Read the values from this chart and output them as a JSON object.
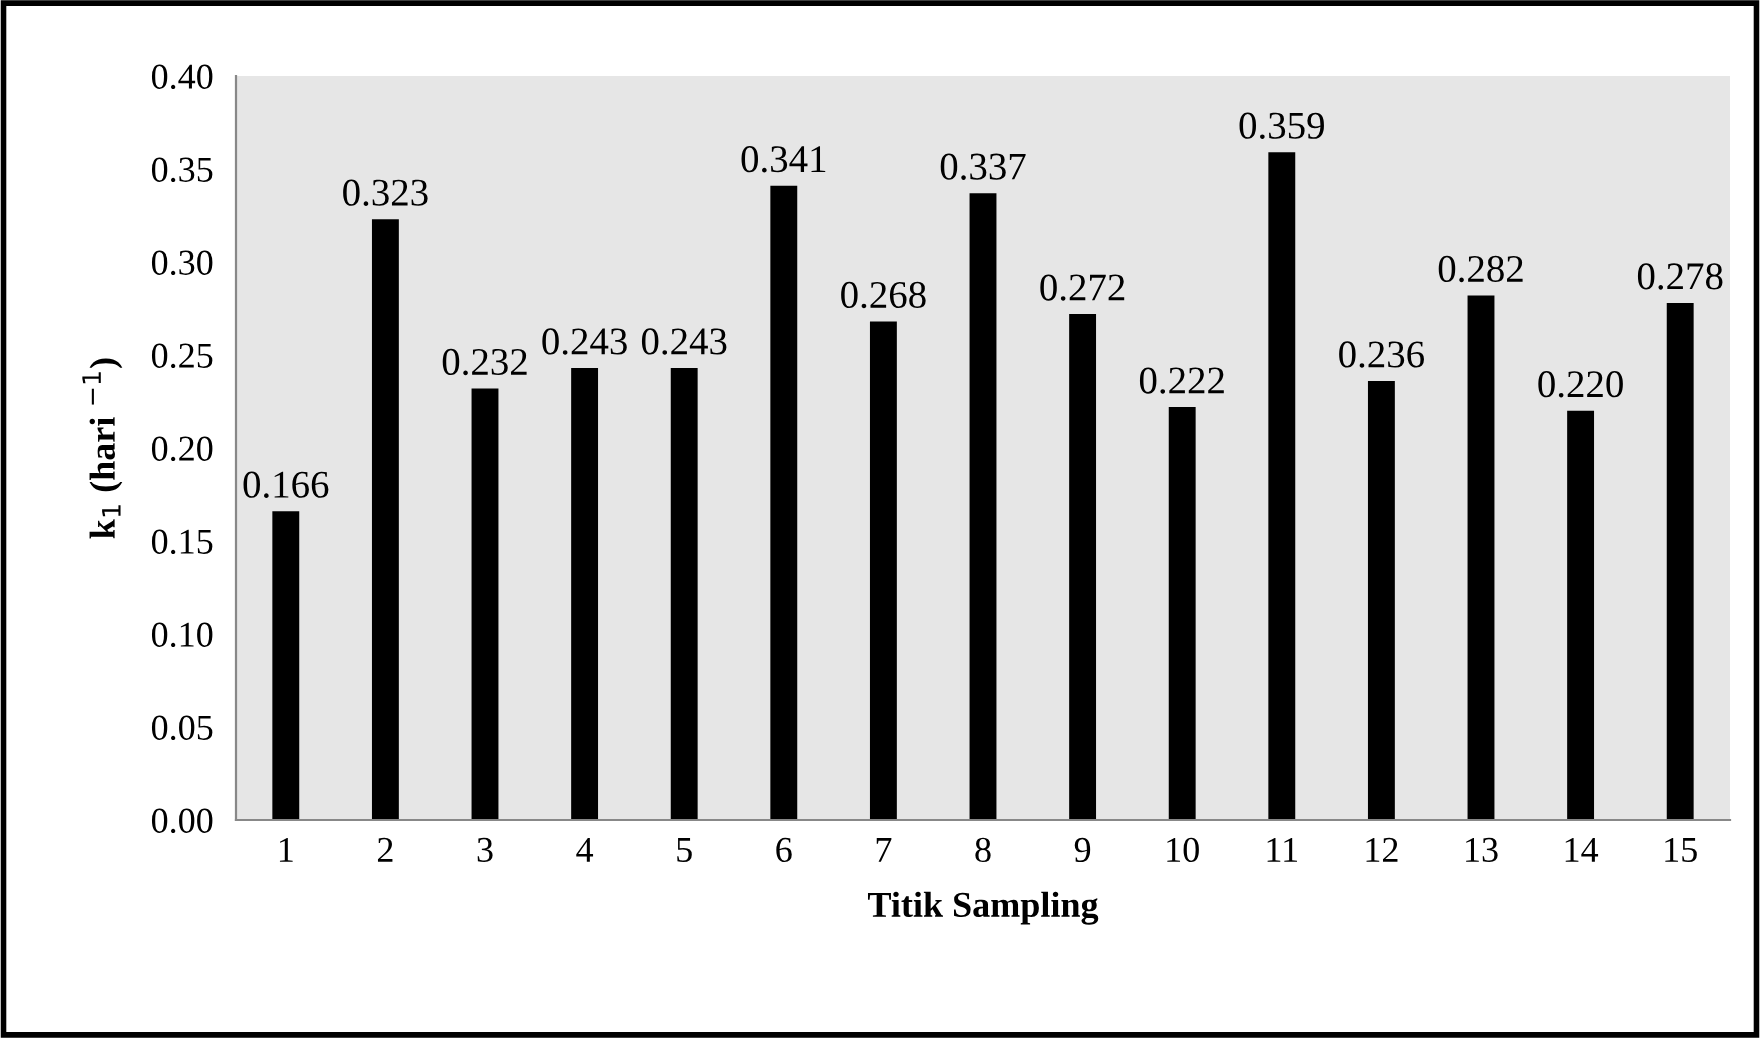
{
  "chart_data": {
    "type": "bar",
    "xlabel": "Titik Sampling",
    "ylabel": "k$_{1}$ (hari $^{−1}$)",
    "categories": [
      "1",
      "2",
      "3",
      "4",
      "5",
      "6",
      "7",
      "8",
      "9",
      "10",
      "11",
      "12",
      "13",
      "14",
      "15"
    ],
    "values": [
      0.166,
      0.323,
      0.232,
      0.243,
      0.243,
      0.341,
      0.268,
      0.337,
      0.272,
      0.222,
      0.359,
      0.236,
      0.282,
      0.22,
      0.278
    ],
    "value_labels": [
      "0.166",
      "0.323",
      "0.232",
      "0.243",
      "0.243",
      "0.341",
      "0.268",
      "0.337",
      "0.272",
      "0.222",
      "0.359",
      "0.236",
      "0.282",
      "0.220",
      "0.278"
    ],
    "color": "#000000",
    "ylim": [
      0,
      0.4
    ],
    "yticks": [
      {
        "value": 0,
        "label": "0.00"
      },
      {
        "value": 0.05,
        "label": "0.05"
      },
      {
        "value": 0.1,
        "label": "0.10"
      },
      {
        "value": 0.15,
        "label": "0.15"
      },
      {
        "value": 0.2,
        "label": "0.20"
      },
      {
        "value": 0.25,
        "label": "0.25"
      },
      {
        "value": 0.3,
        "label": "0.30"
      },
      {
        "value": 0.35,
        "label": "0.35"
      },
      {
        "value": 0.4,
        "label": "0.40"
      }
    ],
    "grid": false,
    "legend": false
  }
}
